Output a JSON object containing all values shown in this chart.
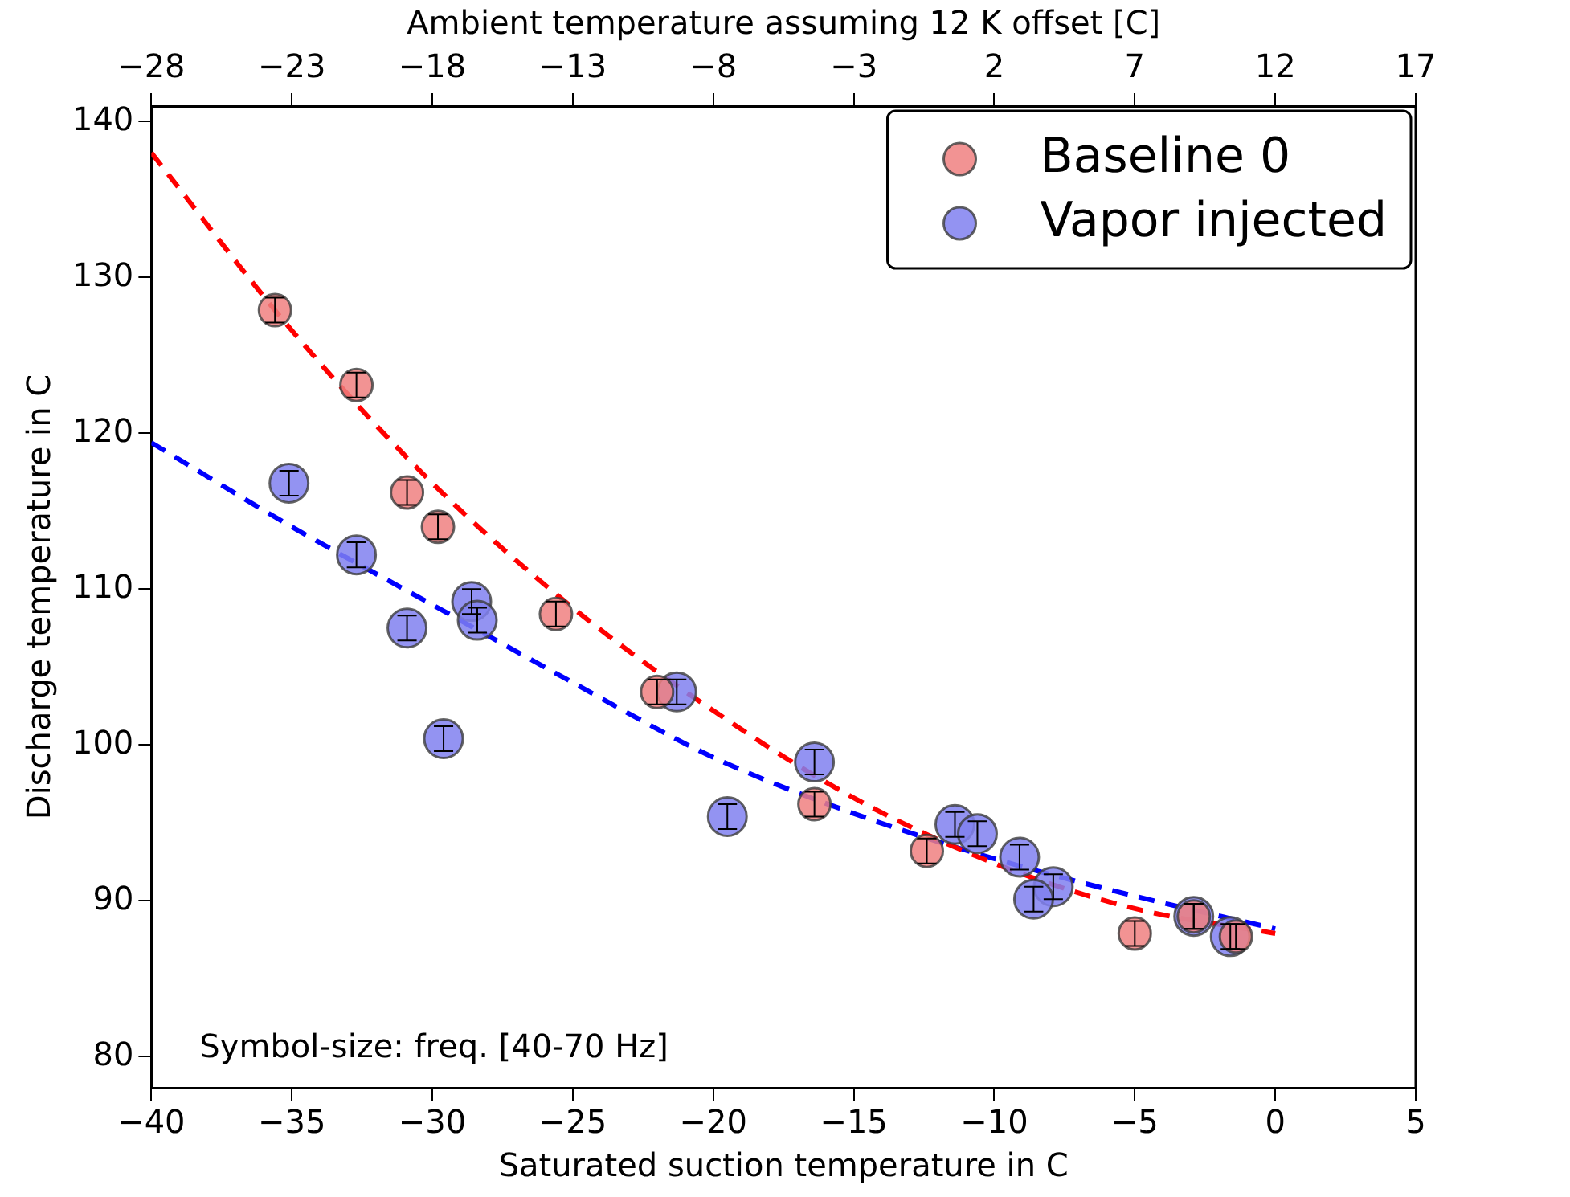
{
  "chart_data": {
    "type": "scatter",
    "xlabel": "Saturated suction temperature in C",
    "ylabel": "Discharge temperature in C",
    "x2label": "Ambient temperature assuming 12 K offset [C]",
    "xlim": [
      -40,
      5
    ],
    "xticks": [
      -40,
      -35,
      -30,
      -25,
      -20,
      -15,
      -10,
      -5,
      0,
      5
    ],
    "ylim": [
      78,
      141
    ],
    "yticks": [
      80,
      90,
      100,
      110,
      120,
      130,
      140
    ],
    "x2lim": [
      -28,
      17
    ],
    "x2ticks": [
      -28,
      -23,
      -18,
      -13,
      -8,
      -3,
      2,
      7,
      12,
      17
    ],
    "grid": false,
    "legend": "top right",
    "marker": "circle",
    "annotations": [
      "Symbol-size: freq. [40-70 Hz]"
    ],
    "series": [
      {
        "name": "Baseline 0",
        "color": "#f08080",
        "x": [
          -35.6,
          -32.7,
          -30.9,
          -29.8,
          -25.6,
          -22.0,
          -16.4,
          -12.4,
          -5.0,
          -2.9,
          -1.4
        ],
        "values": [
          127.9,
          123.1,
          116.2,
          114.0,
          108.4,
          103.4,
          96.2,
          93.2,
          87.9,
          89.0,
          87.7
        ],
        "errors": [
          0.8,
          0.8,
          0.8,
          0.8,
          0.8,
          0.8,
          0.8,
          0.8,
          0.8,
          0.8,
          0.8
        ]
      },
      {
        "name": "Vapor injected",
        "color": "#8080f0",
        "x": [
          -35.1,
          -32.7,
          -30.9,
          -28.6,
          -28.4,
          -29.6,
          -21.3,
          -19.5,
          -16.4,
          -11.4,
          -10.6,
          -9.1,
          -7.9,
          -8.6,
          -2.9,
          -1.6
        ],
        "values": [
          116.8,
          112.2,
          107.5,
          109.2,
          108.0,
          100.4,
          103.4,
          95.4,
          98.9,
          94.9,
          94.3,
          92.8,
          90.9,
          90.1,
          89.0,
          87.7
        ],
        "errors": [
          0.8,
          0.8,
          0.8,
          0.8,
          0.8,
          0.8,
          0.8,
          0.8,
          0.8,
          0.8,
          0.8,
          0.8,
          0.8,
          0.8,
          0.8,
          0.8
        ]
      },
      {
        "type": "line",
        "color": "#ff0000",
        "line_style": "dashed",
        "marker": "none",
        "x": [
          -40,
          -35,
          -30,
          -25,
          -20,
          -15,
          -10,
          -5,
          0
        ],
        "values": [
          138.0,
          126.6,
          116.8,
          108.8,
          102.2,
          96.6,
          92.4,
          89.5,
          87.9
        ]
      },
      {
        "type": "line",
        "color": "#0000ff",
        "line_style": "dashed",
        "marker": "none",
        "x": [
          -40,
          -35,
          -30,
          -25,
          -20,
          -15,
          -10,
          -5,
          0
        ],
        "values": [
          119.4,
          114.0,
          109.0,
          104.0,
          99.2,
          95.6,
          92.7,
          90.3,
          88.2
        ]
      }
    ]
  }
}
